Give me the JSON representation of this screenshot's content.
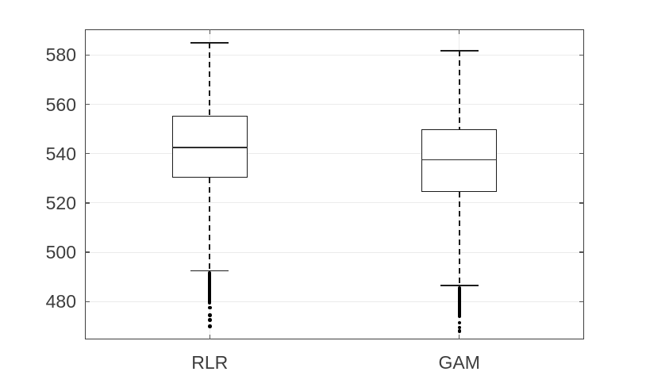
{
  "figure": {
    "background": "#ffffff",
    "title": ""
  },
  "chart_data": {
    "type": "boxplot",
    "title": "",
    "xlabel": "",
    "ylabel": "",
    "categories": [
      "RLR",
      "GAM"
    ],
    "ylim": [
      464.7,
      590.4
    ],
    "yticks": [
      480,
      500,
      520,
      540,
      560,
      580
    ],
    "ytick_labels": [
      "480",
      "500",
      "520",
      "540",
      "560",
      "580"
    ],
    "grid": {
      "horizontal": true,
      "vertical": true
    },
    "legend": "none",
    "series": [
      {
        "name": "RLR",
        "whisker_high": 585,
        "q3": 555.5,
        "median": 542.5,
        "q1": 530.3,
        "whisker_low": 492.5,
        "dense_outlier_range": [
          479,
          492.3
        ],
        "outliers": [
          477.5,
          474.5,
          472.5,
          470
        ]
      },
      {
        "name": "GAM",
        "whisker_high": 581.7,
        "q3": 549.8,
        "median": 537.5,
        "q1": 524.5,
        "whisker_low": 486.5,
        "dense_outlier_range": [
          473.5,
          486.3
        ],
        "outliers": [
          471.5,
          469.5,
          468
        ]
      }
    ],
    "style": {
      "axis_color": "#3f3f3f",
      "grid_color": "#ebebeb",
      "tick_color": "#555555",
      "text_color": "#3d3d3d",
      "box_color": "#1c1c1c",
      "median_color": "#2e2e2e",
      "whisker_color": "#1c1c1c",
      "outlier_color": "#000000",
      "box_fill": "#ffffff"
    }
  }
}
